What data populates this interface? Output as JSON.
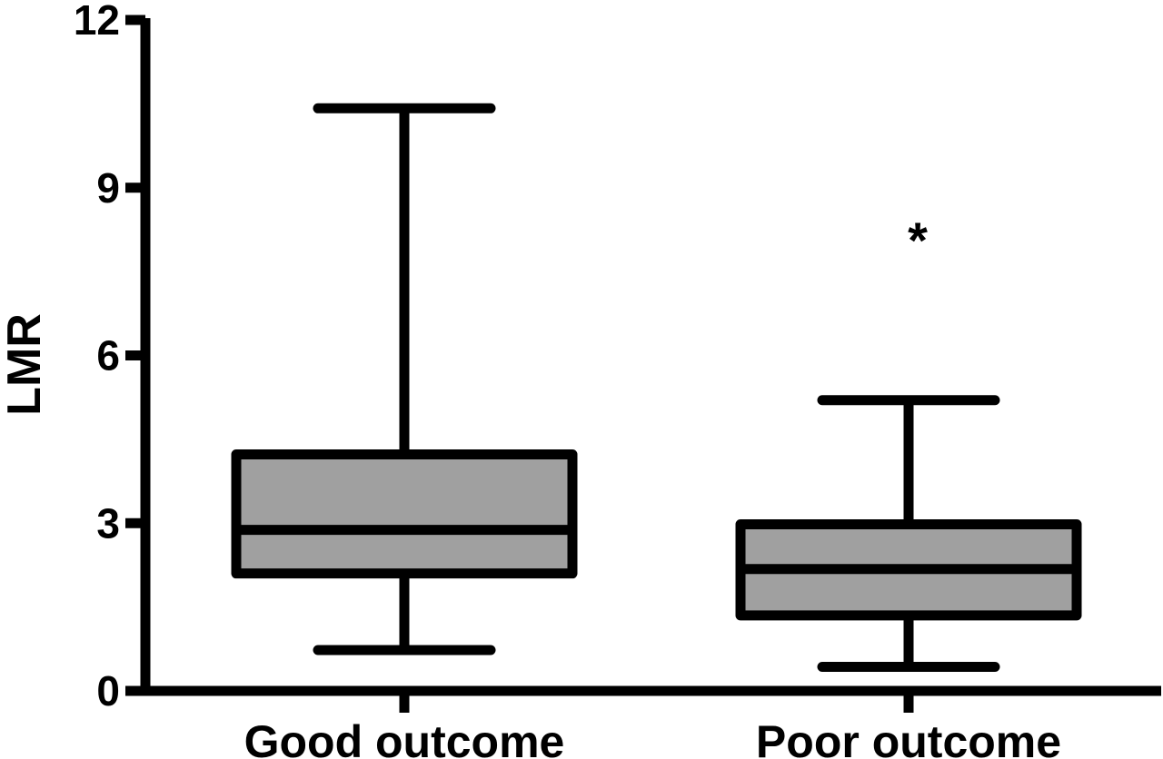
{
  "chart_data": {
    "type": "box",
    "title": "",
    "xlabel": "",
    "ylabel": "LMR",
    "ylim": [
      0,
      12
    ],
    "yticks": [
      0,
      3,
      6,
      9,
      12
    ],
    "categories": [
      "Good outcome",
      "Poor outcome"
    ],
    "boxes": [
      {
        "category": "Good outcome",
        "whisker_low": 0.73,
        "q1": 2.1,
        "median": 2.88,
        "q3": 4.23,
        "whisker_high": 10.42
      },
      {
        "category": "Poor outcome",
        "whisker_low": 0.43,
        "q1": 1.35,
        "median": 2.18,
        "q3": 2.98,
        "whisker_high": 5.2
      }
    ],
    "annotations": [
      {
        "category": "Poor outcome",
        "text": "*",
        "y": 8.3
      }
    ],
    "colors": {
      "box_fill": "#a0a0a0",
      "stroke": "#000000",
      "background": "#ffffff"
    },
    "grid": false,
    "legend": "none"
  }
}
